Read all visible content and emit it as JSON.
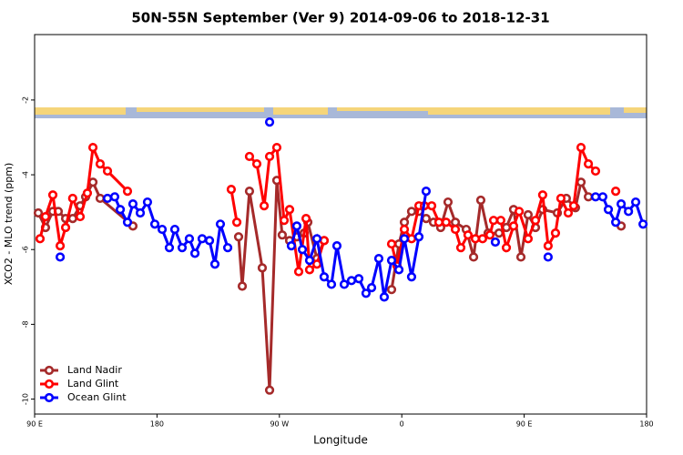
{
  "chart_data": {
    "type": "line",
    "title": "50N-55N September (Ver 9)   2014-09-06 to 2018-12-31",
    "x_label": "Longitude",
    "y_label": "XCO2 - MLO trend (ppm)",
    "xlim": [
      90,
      540
    ],
    "xticks": [
      {
        "value": 90,
        "label": "90 E"
      },
      180,
      {
        "value": 270,
        "label": "90 W"
      },
      {
        "value": 360,
        "label": "0"
      },
      {
        "value": 450,
        "label": "90 E"
      },
      {
        "value": 540,
        "label": "180"
      }
    ],
    "ylim": [
      -10.4,
      -0.25
    ],
    "yticks": [
      -10,
      -8,
      -6,
      -4,
      -2
    ],
    "legend": "lower left",
    "series": [
      {
        "name": "Land Nadir",
        "color": "#a52a2a",
        "x": [
          92.7,
          98,
          103.4,
          107.4,
          112.8,
          118,
          123.5,
          127.5,
          132.9,
          138.2,
          162.3,
          null,
          240,
          242.7,
          248,
          257.4,
          262.8,
          268.1,
          272.1,
          277.5,
          282.8,
          288.2,
          290.9,
          297.6,
          302.9,
          null,
          352.5,
          357.9,
          361.9,
          367.2,
          372.6,
          377.9,
          383.3,
          388.6,
          394,
          399.4,
          407.4,
          412.8,
          418.1,
          423.5,
          431.5,
          436.9,
          442.2,
          447.6,
          452.9,
          458.3,
          463.6,
          474.4,
          481,
          487.7,
          491.8,
          497.2,
          null,
          521.3
        ],
        "values": [
          -5.02,
          -5.41,
          -4.98,
          -4.98,
          -5.17,
          -5.17,
          -4.83,
          -4.59,
          -4.2,
          -4.63,
          -5.37,
          null,
          -5.66,
          -6.98,
          -4.44,
          -6.49,
          -9.76,
          -4.15,
          -5.61,
          -5.76,
          -5.66,
          -5.56,
          -5.27,
          -6.24,
          -5.76,
          null,
          -7.07,
          -5.85,
          -5.27,
          -4.98,
          -4.98,
          -5.17,
          -5.27,
          -5.41,
          -4.73,
          -5.27,
          -5.46,
          -6.2,
          -4.68,
          -5.56,
          -5.56,
          -5.41,
          -4.93,
          -6.2,
          -5.07,
          -5.41,
          -4.93,
          -5.02,
          -4.63,
          -4.88,
          -4.2,
          -4.59,
          null,
          -5.37
        ]
      },
      {
        "name": "Land Glint",
        "color": "#ff0000",
        "x": [
          94,
          98,
          103.4,
          108.8,
          112.8,
          118,
          123.5,
          128.8,
          132.9,
          138.2,
          143.6,
          158.3,
          null,
          234.6,
          238.7,
          null,
          248,
          253.4,
          258.8,
          262.8,
          268.1,
          273.5,
          277.5,
          284.2,
          289.6,
          292.2,
          297.6,
          302.9,
          null,
          352.5,
          356.5,
          361.9,
          367.2,
          372.6,
          376.6,
          382,
          387.3,
          392.6,
          399.4,
          403.4,
          408.7,
          414.1,
          419.4,
          424.8,
          427.5,
          432.8,
          436.9,
          442.2,
          446.3,
          452.9,
          458.3,
          463.6,
          467.6,
          473,
          477,
          482.4,
          486.4,
          491.8,
          497.2,
          502.5,
          null,
          517.3
        ],
        "values": [
          -5.71,
          -5.12,
          -4.54,
          -5.9,
          -5.41,
          -4.63,
          -5.12,
          -4.49,
          -3.27,
          -3.71,
          -3.9,
          -4.44,
          null,
          -4.39,
          -5.27,
          null,
          -3.51,
          -3.71,
          -4.83,
          -3.51,
          -3.27,
          -5.22,
          -4.93,
          -6.59,
          -5.17,
          -6.54,
          -6.39,
          -5.76,
          null,
          -5.85,
          -6.44,
          -5.46,
          -5.71,
          -4.83,
          -4.83,
          -4.83,
          -5.27,
          -5.27,
          -5.46,
          -5.95,
          -5.61,
          -5.71,
          -5.71,
          -5.61,
          -5.22,
          -5.22,
          -5.95,
          -5.37,
          -4.98,
          -5.71,
          -5.22,
          -4.54,
          -5.9,
          -5.56,
          -4.63,
          -5.02,
          -4.83,
          -3.27,
          -3.71,
          -3.9,
          null,
          -4.44
        ]
      },
      {
        "name": "Ocean Glint",
        "color": "#0000ff",
        "x": [
          108.8,
          null,
          143.6,
          148.9,
          153,
          158.3,
          162.3,
          167.7,
          173,
          178.4,
          183.8,
          189.1,
          193.1,
          198.5,
          203.8,
          207.9,
          213.2,
          218.6,
          222.6,
          226.6,
          232,
          null,
          262.8,
          null,
          278.8,
          282.8,
          286.9,
          292.2,
          297.6,
          302.9,
          308.3,
          312.3,
          317.7,
          323,
          328.4,
          333.7,
          337.8,
          343.1,
          347.1,
          352.5,
          357.9,
          361.9,
          367.2,
          372.6,
          377.9,
          null,
          428.8,
          null,
          467.6,
          null,
          502.5,
          507.8,
          511.9,
          517.3,
          521.3,
          526.7,
          532,
          537.4
        ],
        "values": [
          -6.2,
          null,
          -4.63,
          -4.59,
          -4.93,
          -5.27,
          -4.78,
          -5.02,
          -4.73,
          -5.32,
          -5.46,
          -5.95,
          -5.46,
          -5.95,
          -5.71,
          -6.1,
          -5.71,
          -5.76,
          -6.39,
          -5.32,
          -5.95,
          null,
          -2.59,
          null,
          -5.9,
          -5.37,
          -6,
          -6.29,
          -5.71,
          -6.73,
          -6.93,
          -5.9,
          -6.93,
          -6.83,
          -6.78,
          -7.17,
          -7.02,
          -6.24,
          -7.27,
          -6.29,
          -6.54,
          -5.71,
          -6.73,
          -5.66,
          -4.44,
          null,
          -5.8,
          null,
          -6.2,
          null,
          -4.59,
          -4.59,
          -4.93,
          -5.27,
          -4.78,
          -4.98,
          -4.73,
          -5.32
        ]
      }
    ]
  }
}
